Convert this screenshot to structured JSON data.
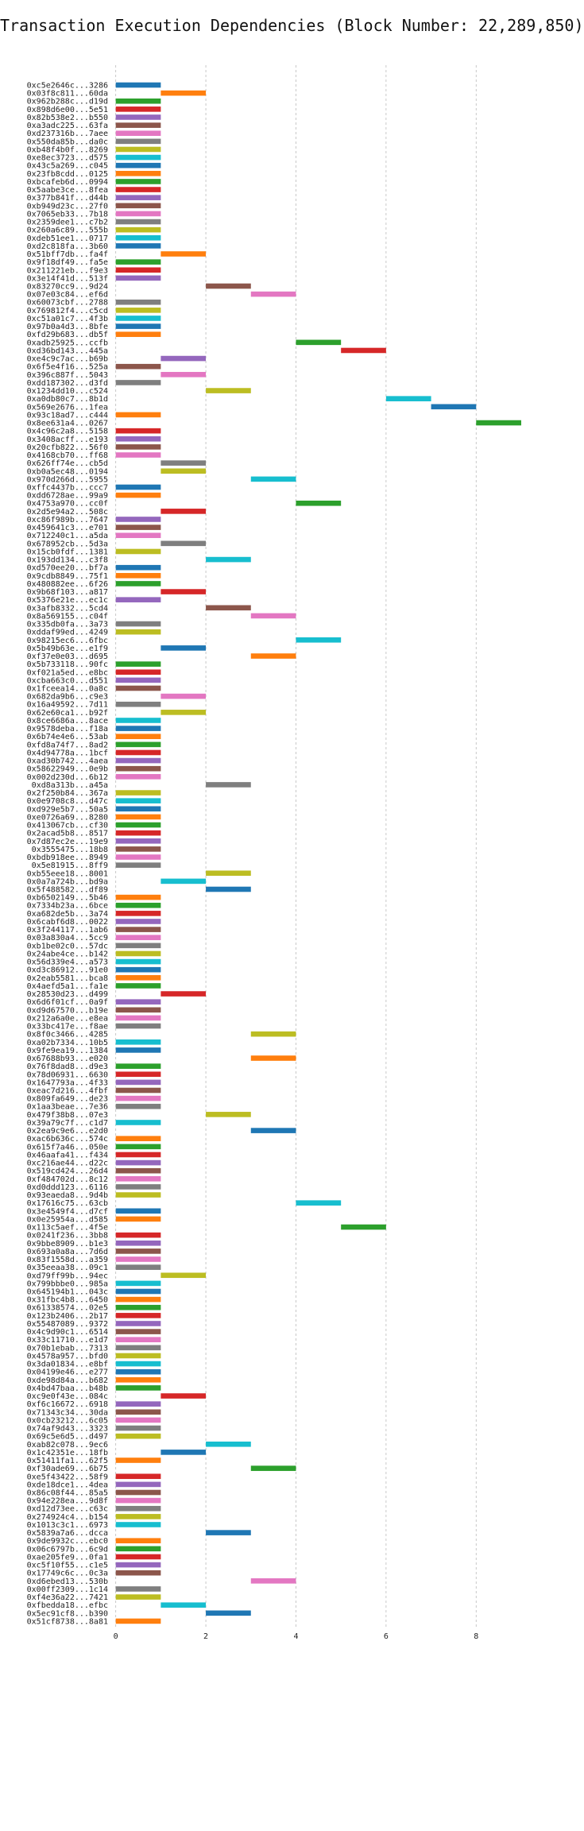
{
  "chart_data": {
    "type": "bar",
    "orientation": "horizontal",
    "title": "Transaction Execution Dependencies (Block Number: 22,289,850)",
    "xlabel": "",
    "ylabel": "",
    "xlim": [
      -0.1,
      9.6
    ],
    "x_ticks": [
      0,
      2,
      4,
      6,
      8
    ],
    "grid": "x, dashed",
    "palette": [
      "#1f77b4",
      "#ff7f0e",
      "#2ca02c",
      "#d62728",
      "#9467bd",
      "#8c564b",
      "#e377c2",
      "#7f7f7f",
      "#bcbd22",
      "#17becf"
    ],
    "rows": [
      {
        "label": "0xc5e2646c...3286",
        "start": 0
      },
      {
        "label": "0x03f8c811...60da",
        "start": 1
      },
      {
        "label": "0x962b288c...d19d",
        "start": 0
      },
      {
        "label": "0x898d6e00...5e51",
        "start": 0
      },
      {
        "label": "0x82b538e2...b550",
        "start": 0
      },
      {
        "label": "0xa3adc225...63fa",
        "start": 0
      },
      {
        "label": "0xd237316b...7aee",
        "start": 0
      },
      {
        "label": "0x550da85b...da0c",
        "start": 0
      },
      {
        "label": "0xb48f4b0f...8269",
        "start": 0
      },
      {
        "label": "0xe8ec3723...d575",
        "start": 0
      },
      {
        "label": "0x43c5a269...c045",
        "start": 0
      },
      {
        "label": "0x23fb8cdd...0125",
        "start": 0
      },
      {
        "label": "0xbcafeb6d...0994",
        "start": 0
      },
      {
        "label": "0x5aabe3ce...8fea",
        "start": 0
      },
      {
        "label": "0x377b841f...d44b",
        "start": 0
      },
      {
        "label": "0xb949d23c...27f0",
        "start": 0
      },
      {
        "label": "0x7065eb33...7b18",
        "start": 0
      },
      {
        "label": "0x2359dee1...c7b2",
        "start": 0
      },
      {
        "label": "0x260a6c89...555b",
        "start": 0
      },
      {
        "label": "0xdeb51ee1...0717",
        "start": 0
      },
      {
        "label": "0xd2c818fa...3b60",
        "start": 0
      },
      {
        "label": "0x51bff7db...fa4f",
        "start": 1
      },
      {
        "label": "0x9f18df49...fa5e",
        "start": 0
      },
      {
        "label": "0x211221eb...f9e3",
        "start": 0
      },
      {
        "label": "0x3e14f41d...513f",
        "start": 0
      },
      {
        "label": "0x83270cc9...9d24",
        "start": 2
      },
      {
        "label": "0x07e03c84...ef6d",
        "start": 3
      },
      {
        "label": "0x60073cbf...2788",
        "start": 0
      },
      {
        "label": "0x769812f4...c5cd",
        "start": 0
      },
      {
        "label": "0xc51a01c7...4f3b",
        "start": 0
      },
      {
        "label": "0x97b0a4d3...8bfe",
        "start": 0
      },
      {
        "label": "0xfd29b683...db5f",
        "start": 0
      },
      {
        "label": "0xadb25925...ccfb",
        "start": 4
      },
      {
        "label": "0xd36bd143...445a",
        "start": 5
      },
      {
        "label": "0xe4c9c7ac...b69b",
        "start": 1
      },
      {
        "label": "0x6f5e4f16...525a",
        "start": 0
      },
      {
        "label": "0x396c887f...5043",
        "start": 1
      },
      {
        "label": "0xdd187302...d3fd",
        "start": 0
      },
      {
        "label": "0x1234dd10...c524",
        "start": 2
      },
      {
        "label": "0xa0db80c7...8b1d",
        "start": 6
      },
      {
        "label": "0x569e2676...1fea",
        "start": 7
      },
      {
        "label": "0x93c18ad7...c444",
        "start": 0
      },
      {
        "label": "0x8ee631a4...0267",
        "start": 8
      },
      {
        "label": "0x4c96c2a8...5158",
        "start": 0
      },
      {
        "label": "0x3408acff...e193",
        "start": 0
      },
      {
        "label": "0x20cfb822...56f0",
        "start": 0
      },
      {
        "label": "0x4168cb70...ff68",
        "start": 0
      },
      {
        "label": "0x626ff74e...cb5d",
        "start": 1
      },
      {
        "label": "0xb0a5ec48...0194",
        "start": 1
      },
      {
        "label": "0x970d266d...5955",
        "start": 3
      },
      {
        "label": "0xffc4437b...ccc7",
        "start": 0
      },
      {
        "label": "0xdd6728ae...99a9",
        "start": 0
      },
      {
        "label": "0x4753a970...cc0f",
        "start": 4
      },
      {
        "label": "0x2d5e94a2...508c",
        "start": 1
      },
      {
        "label": "0xc86f989b...7647",
        "start": 0
      },
      {
        "label": "0x459641c3...e701",
        "start": 0
      },
      {
        "label": "0x712240c1...a5da",
        "start": 0
      },
      {
        "label": "0x678952cb...5d3a",
        "start": 1
      },
      {
        "label": "0x15cb0fdf...1381",
        "start": 0
      },
      {
        "label": "0x193dd134...c3f8",
        "start": 2
      },
      {
        "label": "0xd570ee20...bf7a",
        "start": 0
      },
      {
        "label": "0x9cdb8849...75f1",
        "start": 0
      },
      {
        "label": "0x480882ee...6f26",
        "start": 0
      },
      {
        "label": "0x9b68f103...a817",
        "start": 1
      },
      {
        "label": "0x5376e21e...ec1c",
        "start": 0
      },
      {
        "label": "0x3afb8332...5cd4",
        "start": 2
      },
      {
        "label": "0x8a569155...c04f",
        "start": 3
      },
      {
        "label": "0x335db0fa...3a73",
        "start": 0
      },
      {
        "label": "0xddaf99ed...4249",
        "start": 0
      },
      {
        "label": "0x98215ec6...6fbc",
        "start": 4
      },
      {
        "label": "0x5b49b63e...e1f9",
        "start": 1
      },
      {
        "label": "0xf37e0e03...d695",
        "start": 3
      },
      {
        "label": "0x5b733118...90fc",
        "start": 0
      },
      {
        "label": "0xf021a5ed...e8bc",
        "start": 0
      },
      {
        "label": "0xcba663c0...d551",
        "start": 0
      },
      {
        "label": "0x1fceea14...0a8c",
        "start": 0
      },
      {
        "label": "0x682da9b6...c9e3",
        "start": 1
      },
      {
        "label": "0x16a49592...7d11",
        "start": 0
      },
      {
        "label": "0x62e60ca1...b92f",
        "start": 1
      },
      {
        "label": "0x8ce6686a...8ace",
        "start": 0
      },
      {
        "label": "0x9578deba...f18a",
        "start": 0
      },
      {
        "label": "0x6b74e4e6...53ab",
        "start": 0
      },
      {
        "label": "0xfd8a74f7...8ad2",
        "start": 0
      },
      {
        "label": "0x4d94778a...1bcf",
        "start": 0
      },
      {
        "label": "0xad30b742...4aea",
        "start": 0
      },
      {
        "label": "0x58622949...0e9b",
        "start": 0
      },
      {
        "label": "0x002d230d...6b12",
        "start": 0
      },
      {
        "label": "0xd8a313b...a45a",
        "start": 2
      },
      {
        "label": "0x2f250b84...367a",
        "start": 0
      },
      {
        "label": "0x0e9708c8...d47c",
        "start": 0
      },
      {
        "label": "0xd929e5b7...50a5",
        "start": 0
      },
      {
        "label": "0xe0726a69...8280",
        "start": 0
      },
      {
        "label": "0x413067cb...cf30",
        "start": 0
      },
      {
        "label": "0x2acad5b8...8517",
        "start": 0
      },
      {
        "label": "0x7d87ec2e...19e9",
        "start": 0
      },
      {
        "label": "0x3555475...18b8",
        "start": 0
      },
      {
        "label": "0xbdb918ee...8949",
        "start": 0
      },
      {
        "label": "0x5e81915...8ff9",
        "start": 0
      },
      {
        "label": "0xb55eee18...8001",
        "start": 2
      },
      {
        "label": "0x0a7a724b...bd9a",
        "start": 1
      },
      {
        "label": "0x5f488582...df89",
        "start": 2
      },
      {
        "label": "0xb6502149...5b46",
        "start": 0
      },
      {
        "label": "0x7334b23a...6bce",
        "start": 0
      },
      {
        "label": "0xa682de5b...3a74",
        "start": 0
      },
      {
        "label": "0x6cabf6d8...0022",
        "start": 0
      },
      {
        "label": "0x3f244117...1ab6",
        "start": 0
      },
      {
        "label": "0x03a830a4...5cc9",
        "start": 0
      },
      {
        "label": "0xb1be02c0...57dc",
        "start": 0
      },
      {
        "label": "0x24abe4ce...b142",
        "start": 0
      },
      {
        "label": "0x56d339e4...a573",
        "start": 0
      },
      {
        "label": "0xd3c86912...91e0",
        "start": 0
      },
      {
        "label": "0x2eab5581...bca8",
        "start": 0
      },
      {
        "label": "0x4aefd5a1...fa1e",
        "start": 0
      },
      {
        "label": "0x28530d23...d499",
        "start": 1
      },
      {
        "label": "0x6d6f01cf...0a9f",
        "start": 0
      },
      {
        "label": "0xd9d67570...b19e",
        "start": 0
      },
      {
        "label": "0x212a6a0e...e8ea",
        "start": 0
      },
      {
        "label": "0x33bc417e...f8ae",
        "start": 0
      },
      {
        "label": "0x8f0c3466...4285",
        "start": 3
      },
      {
        "label": "0xa02b7334...10b5",
        "start": 0
      },
      {
        "label": "0x9fe9ea19...1384",
        "start": 0
      },
      {
        "label": "0x67688b93...e020",
        "start": 3
      },
      {
        "label": "0x76f8dad8...d9e3",
        "start": 0
      },
      {
        "label": "0x78d06931...6630",
        "start": 0
      },
      {
        "label": "0x1647793a...4f33",
        "start": 0
      },
      {
        "label": "0xeac7d216...4fbf",
        "start": 0
      },
      {
        "label": "0x809fa649...de23",
        "start": 0
      },
      {
        "label": "0x1aa3beae...7e36",
        "start": 0
      },
      {
        "label": "0x479f38b8...07e3",
        "start": 2
      },
      {
        "label": "0x39a79c7f...c1d7",
        "start": 0
      },
      {
        "label": "0x2ea9c9e6...e2d0",
        "start": 3
      },
      {
        "label": "0xac6b636c...574c",
        "start": 0
      },
      {
        "label": "0x615f7a46...050e",
        "start": 0
      },
      {
        "label": "0x46aafa41...f434",
        "start": 0
      },
      {
        "label": "0xc216ae44...d22c",
        "start": 0
      },
      {
        "label": "0x519cd424...26d4",
        "start": 0
      },
      {
        "label": "0xf484702d...8c12",
        "start": 0
      },
      {
        "label": "0xd0ddd123...6116",
        "start": 0
      },
      {
        "label": "0x93eaeda8...9d4b",
        "start": 0
      },
      {
        "label": "0x17616c75...63cb",
        "start": 4
      },
      {
        "label": "0x3e4549f4...d7cf",
        "start": 0
      },
      {
        "label": "0x0e25954a...d585",
        "start": 0
      },
      {
        "label": "0x113c5aef...4f5e",
        "start": 5
      },
      {
        "label": "0x0241f236...3bb8",
        "start": 0
      },
      {
        "label": "0x9bbe8909...b1e3",
        "start": 0
      },
      {
        "label": "0x693a0a8a...7d6d",
        "start": 0
      },
      {
        "label": "0x83f1558d...a359",
        "start": 0
      },
      {
        "label": "0x35eeaa38...09c1",
        "start": 0
      },
      {
        "label": "0xd79ff99b...94ec",
        "start": 1
      },
      {
        "label": "0x799bbbe0...985a",
        "start": 0
      },
      {
        "label": "0x645194b1...043c",
        "start": 0
      },
      {
        "label": "0x31fbc4b8...6450",
        "start": 0
      },
      {
        "label": "0x61338574...02e5",
        "start": 0
      },
      {
        "label": "0x123b2406...2b17",
        "start": 0
      },
      {
        "label": "0x55487089...9372",
        "start": 0
      },
      {
        "label": "0x4c9d90c1...6514",
        "start": 0
      },
      {
        "label": "0x33c11710...e1d7",
        "start": 0
      },
      {
        "label": "0x70b1ebab...7313",
        "start": 0
      },
      {
        "label": "0x4578a957...bfd0",
        "start": 0
      },
      {
        "label": "0x3da01834...e8bf",
        "start": 0
      },
      {
        "label": "0x04199e46...e277",
        "start": 0
      },
      {
        "label": "0xde98d84a...b682",
        "start": 0
      },
      {
        "label": "0x4bd47baa...b48b",
        "start": 0
      },
      {
        "label": "0xc9e0f43e...084c",
        "start": 1
      },
      {
        "label": "0xf6c16672...6918",
        "start": 0
      },
      {
        "label": "0x71343c34...30da",
        "start": 0
      },
      {
        "label": "0x0cb23212...6c05",
        "start": 0
      },
      {
        "label": "0x74af9d43...3323",
        "start": 0
      },
      {
        "label": "0x69c5e6d5...d497",
        "start": 0
      },
      {
        "label": "0xab82c078...9ec6",
        "start": 2
      },
      {
        "label": "0x1c42351e...18fb",
        "start": 1
      },
      {
        "label": "0x51411fa1...62f5",
        "start": 0
      },
      {
        "label": "0xf30ade69...6b75",
        "start": 3
      },
      {
        "label": "0xe5f43422...58f9",
        "start": 0
      },
      {
        "label": "0xde18dce1...4dea",
        "start": 0
      },
      {
        "label": "0x86c08f44...85a5",
        "start": 0
      },
      {
        "label": "0x94e228ea...9d8f",
        "start": 0
      },
      {
        "label": "0xd12d73ee...c63c",
        "start": 0
      },
      {
        "label": "0x274924c4...b154",
        "start": 0
      },
      {
        "label": "0x1013c3c1...6973",
        "start": 0
      },
      {
        "label": "0x5839a7a6...dcca",
        "start": 2
      },
      {
        "label": "0x9de9932c...ebc0",
        "start": 0
      },
      {
        "label": "0x06c6797b...6c9d",
        "start": 0
      },
      {
        "label": "0xae205fe9...0fa1",
        "start": 0
      },
      {
        "label": "0xc5f10f55...c1e5",
        "start": 0
      },
      {
        "label": "0x17749c6c...0c3a",
        "start": 0
      },
      {
        "label": "0xd6ebed13...530b",
        "start": 3
      },
      {
        "label": "0x00ff2309...1c14",
        "start": 0
      },
      {
        "label": "0xf4e36a22...7421",
        "start": 0
      },
      {
        "label": "0xfbedda18...efbc",
        "start": 1
      },
      {
        "label": "0x5ec91cf8...b390",
        "start": 2
      },
      {
        "label": "0x51cf8738...8a81",
        "start": 0
      }
    ]
  }
}
